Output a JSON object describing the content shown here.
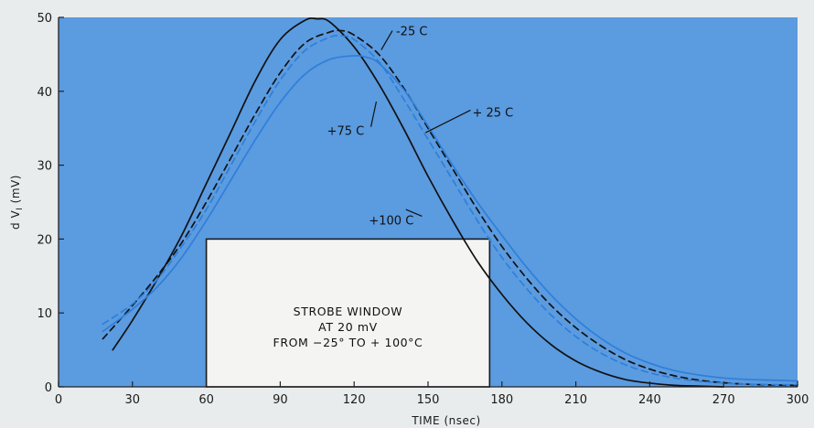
{
  "chart_data": {
    "type": "line",
    "title": "",
    "xlabel": "TIME (nsec)",
    "ylabel_parts": {
      "base": "d V",
      "sub": "I",
      "rest": " (mV)"
    },
    "xlim": [
      0,
      300
    ],
    "ylim": [
      0,
      50
    ],
    "x_ticks": [
      0,
      30,
      60,
      90,
      120,
      150,
      180,
      210,
      240,
      270,
      300
    ],
    "y_ticks": [
      0,
      10,
      20,
      30,
      40,
      50
    ],
    "grid": false,
    "plot_background": "#5b9be0",
    "series": [
      {
        "name": "+100 C",
        "color": "#111111",
        "dashed": false,
        "x": [
          22,
          30,
          40,
          50,
          60,
          70,
          80,
          90,
          100,
          105,
          110,
          120,
          130,
          140,
          150,
          160,
          170,
          180,
          190,
          200,
          210,
          220,
          230,
          240,
          250,
          260,
          270
        ],
        "y": [
          5,
          9,
          14.5,
          20.5,
          27.5,
          34.5,
          41.5,
          47,
          49.6,
          49.8,
          49.4,
          46,
          41,
          35,
          28.5,
          22.5,
          17,
          12.5,
          8.7,
          5.7,
          3.5,
          2,
          1,
          0.5,
          0.2,
          0.1,
          0
        ]
      },
      {
        "name": "-25 C",
        "color": "#111111",
        "dashed": true,
        "x": [
          18,
          30,
          40,
          50,
          60,
          70,
          80,
          90,
          100,
          110,
          115,
          120,
          130,
          140,
          150,
          160,
          170,
          180,
          190,
          200,
          210,
          220,
          230,
          240,
          250,
          260,
          270,
          280,
          290,
          300
        ],
        "y": [
          6.5,
          11,
          15,
          19.5,
          25,
          31,
          37,
          42.5,
          46.5,
          48,
          48.2,
          47.6,
          45,
          40.5,
          35,
          29.5,
          24,
          19,
          14.7,
          11,
          8,
          5.6,
          3.7,
          2.4,
          1.5,
          0.9,
          0.55,
          0.35,
          0.25,
          0.2
        ]
      },
      {
        "name": "+75 C",
        "color": "#2f7fd8",
        "dashed": true,
        "x": [
          18,
          30,
          40,
          50,
          60,
          70,
          80,
          90,
          100,
          110,
          115,
          120,
          130,
          140,
          150,
          160,
          170,
          180,
          190,
          200,
          210,
          220,
          230,
          240,
          250,
          260,
          270,
          280,
          290,
          300
        ],
        "y": [
          8.5,
          11.2,
          14.5,
          19,
          24,
          30,
          36,
          41.5,
          45.5,
          47.3,
          47.5,
          47,
          44,
          39,
          33.5,
          28,
          22.5,
          17.5,
          13.3,
          9.7,
          6.8,
          4.6,
          3,
          1.9,
          1.2,
          0.75,
          0.5,
          0.35,
          0.3,
          0.3
        ]
      },
      {
        "name": "+25 C",
        "color": "#2f7fd8",
        "dashed": false,
        "x": [
          18,
          30,
          40,
          50,
          60,
          70,
          80,
          90,
          100,
          110,
          120,
          125,
          130,
          140,
          150,
          160,
          170,
          180,
          190,
          200,
          210,
          220,
          230,
          240,
          250,
          260,
          270,
          280,
          290,
          300
        ],
        "y": [
          7.5,
          10.5,
          13.5,
          17.5,
          22.5,
          28,
          33.5,
          38.5,
          42.3,
          44.3,
          44.8,
          44.6,
          43.8,
          40.3,
          35.3,
          30,
          25,
          20.5,
          16.2,
          12.4,
          9.2,
          6.6,
          4.6,
          3.2,
          2.2,
          1.6,
          1.2,
          1,
          0.9,
          0.8
        ]
      }
    ],
    "annotations": [
      {
        "text": "-25 C",
        "x": 137,
        "y": 48.2
      },
      {
        "text": "+75 C",
        "x": 109,
        "y": 34.7
      },
      {
        "text": "+ 25 C",
        "x": 168,
        "y": 37.2
      },
      {
        "text": "+100 C",
        "x": 126,
        "y": 22.6
      }
    ],
    "strobe_window": {
      "x_range": [
        60,
        175
      ],
      "y_range": [
        0,
        20
      ],
      "lines": [
        "STROBE WINDOW",
        "AT 20 mV",
        "FROM  −25°  TO + 100°C"
      ]
    }
  }
}
